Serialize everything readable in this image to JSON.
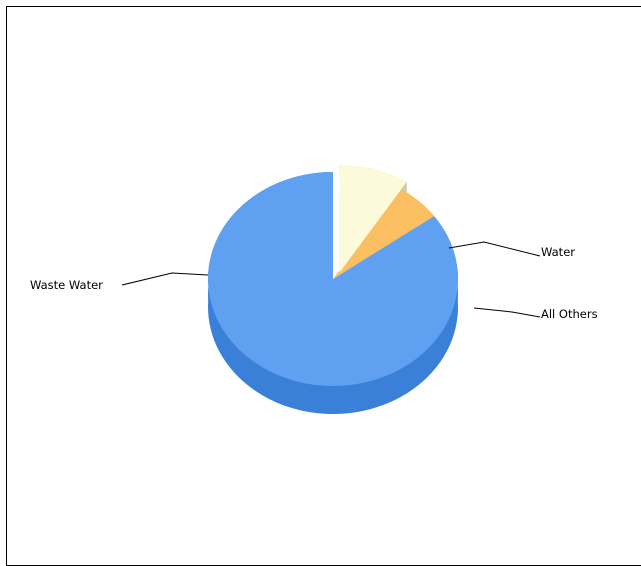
{
  "chart_data": {
    "type": "pie",
    "title": "",
    "slices": [
      {
        "label": "Waste Water",
        "value": 85,
        "color": "#5fa0f0",
        "side_color": "#3a7fd8",
        "exploded": false
      },
      {
        "label": "Water",
        "value": 6,
        "color": "#fbbf62",
        "side_color": "#d9962f",
        "exploded": false
      },
      {
        "label": "All Others",
        "value": 9,
        "color": "#fbfadb",
        "side_color": "#c9c8a8",
        "exploded": true
      }
    ],
    "style": "3d-exploded",
    "legend": "none"
  }
}
